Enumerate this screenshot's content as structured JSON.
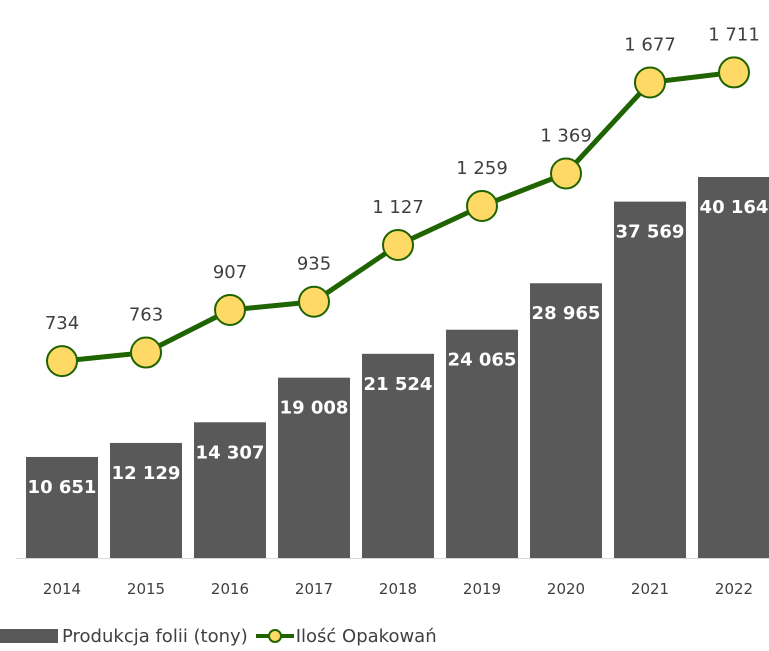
{
  "chart_data": {
    "type": "bar+line",
    "categories": [
      "2014",
      "2015",
      "2016",
      "2017",
      "2018",
      "2019",
      "2020",
      "2021",
      "2022"
    ],
    "bar_series": {
      "name": "Produkcja folii (tony)",
      "values": [
        10651,
        12129,
        14307,
        19008,
        21524,
        24065,
        28965,
        37569,
        40164
      ],
      "labels": [
        "10 651",
        "12 129",
        "14 307",
        "19 008",
        "21 524",
        "24 065",
        "28 965",
        "37 569",
        "40 164"
      ],
      "color": "#595959"
    },
    "line_series": {
      "name": "Ilość Opakowań",
      "values": [
        734,
        763,
        907,
        935,
        1127,
        1259,
        1369,
        1677,
        1711
      ],
      "labels": [
        "734",
        "763",
        "907",
        "935",
        "1 127",
        "1 259",
        "1 369",
        "1 677",
        "1 711"
      ],
      "line_color": "#1F6400",
      "marker_fill": "#FFD966",
      "marker_stroke": "#1F6400"
    },
    "title": "",
    "xlabel": "",
    "ylabel": "",
    "y_left_range": [
      0,
      43000
    ],
    "y_right_range": [
      0,
      1750
    ],
    "grid": false,
    "legend_position": "bottom-left"
  },
  "legend": {
    "bar_label": "Produkcja folii (tony)",
    "line_label": "Ilość Opakowań"
  }
}
